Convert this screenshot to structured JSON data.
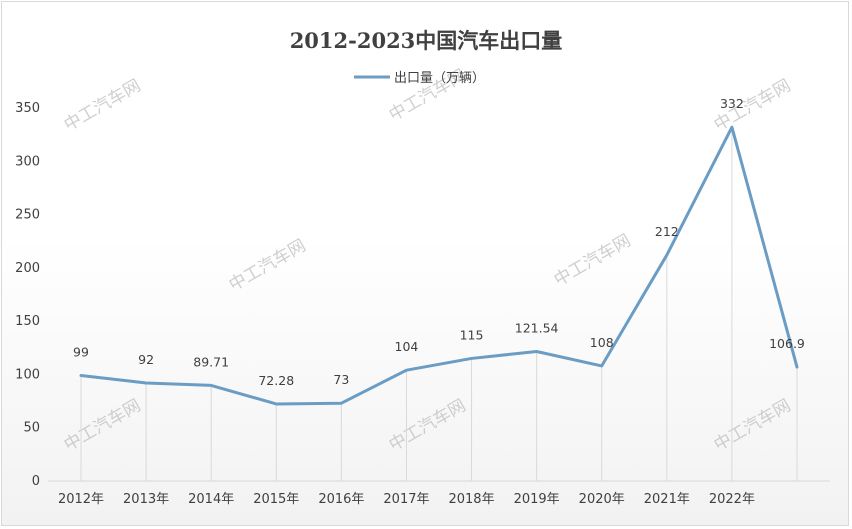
{
  "chart_data": {
    "type": "line",
    "title": "2012-2023中国汽车出口量",
    "categories": [
      "2012年",
      "2013年",
      "2014年",
      "2015年",
      "2016年",
      "2017年",
      "2018年",
      "2019年",
      "2020年",
      "2021年",
      "2022年",
      ""
    ],
    "series": [
      {
        "name": "出口量（万辆）",
        "values": [
          99,
          92,
          89.71,
          72.28,
          73,
          104,
          115,
          121.54,
          108,
          212,
          332,
          106.9
        ],
        "labels": [
          "99",
          "92",
          "89.71",
          "72.28",
          "73",
          "104",
          "115",
          "121.54",
          "108",
          "212",
          "332",
          "106.9"
        ],
        "color": "#6a9cc4"
      }
    ],
    "ylim": [
      0,
      350
    ],
    "yticks": [
      "0",
      "50",
      "100",
      "150",
      "200",
      "250",
      "300",
      "350"
    ],
    "legend_position": "top-center",
    "grid": "vertical",
    "watermark": "中工汽车网"
  }
}
